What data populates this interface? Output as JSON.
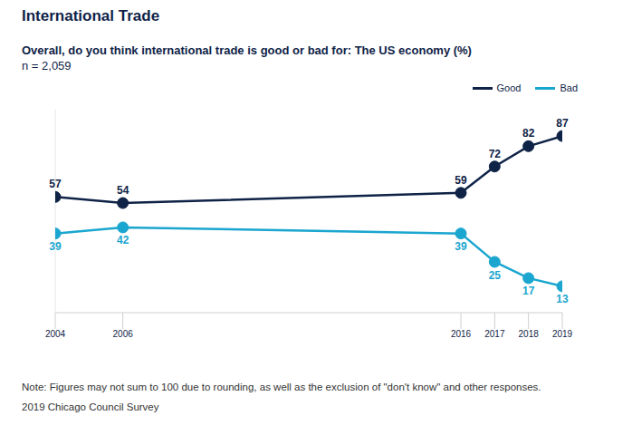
{
  "chart_data": {
    "type": "line",
    "title": "International Trade",
    "subtitle": "Overall, do you think international trade is good or bad for: The US economy (%)",
    "sample": "n = 2,059",
    "x": [
      2004,
      2006,
      2016,
      2017,
      2018,
      2019
    ],
    "series": [
      {
        "name": "Good",
        "color": "#0f2347",
        "values": [
          57,
          54,
          59,
          72,
          82,
          87
        ]
      },
      {
        "name": "Bad",
        "color": "#1ba6cf",
        "values": [
          39,
          42,
          39,
          25,
          17,
          13
        ]
      }
    ],
    "xlim": [
      2004,
      2019
    ],
    "xticks": [
      2004,
      2006,
      2016,
      2017,
      2018,
      2019
    ],
    "ylim": [
      0,
      100
    ],
    "tick_labels": "x",
    "data_labels": true,
    "marker": "circle",
    "legend": "top-right",
    "note": "Note: Figures may not sum to 100 due to rounding, as well as the exclusion of \"don't know\" and other responses.",
    "source": "2019 Chicago Council Survey"
  }
}
